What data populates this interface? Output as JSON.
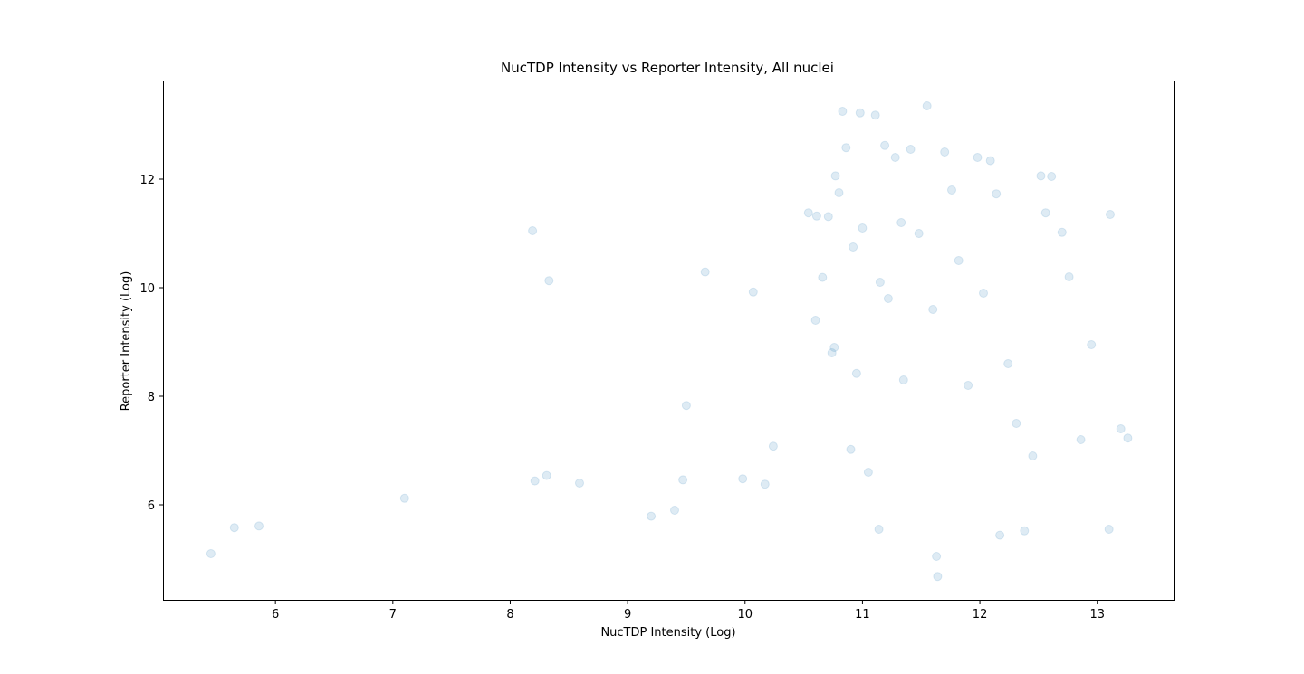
{
  "chart_data": {
    "type": "scatter",
    "title": "NucTDP Intensity vs Reporter Intensity, All nuclei",
    "xlabel": "NucTDP Intensity (Log)",
    "ylabel": "Reporter Intensity (Log)",
    "xlim": [
      5.05,
      13.65
    ],
    "ylim": [
      4.25,
      13.8
    ],
    "xticks": [
      6,
      7,
      8,
      9,
      10,
      11,
      12,
      13
    ],
    "yticks": [
      6,
      8,
      10,
      12
    ],
    "grid": false,
    "legend": "none",
    "marker_color": "#1f77b4",
    "marker_alpha": 0.15,
    "points": {
      "x": [
        5.45,
        5.65,
        5.86,
        7.1,
        8.19,
        8.21,
        8.31,
        8.33,
        8.59,
        9.2,
        9.4,
        9.47,
        9.5,
        9.66,
        9.98,
        10.07,
        10.17,
        10.24,
        10.54,
        10.61,
        10.6,
        10.66,
        10.71,
        10.74,
        10.76,
        10.77,
        10.8,
        10.83,
        10.86,
        10.9,
        10.92,
        10.95,
        10.98,
        11.0,
        11.05,
        11.11,
        11.14,
        11.15,
        11.19,
        11.22,
        11.28,
        11.33,
        11.35,
        11.41,
        11.48,
        11.55,
        11.6,
        11.63,
        11.64,
        11.7,
        11.76,
        11.82,
        11.9,
        11.98,
        12.03,
        12.09,
        12.14,
        12.17,
        12.24,
        12.31,
        12.38,
        12.45,
        12.52,
        12.56,
        12.61,
        12.7,
        12.76,
        12.86,
        12.95,
        13.1,
        13.11,
        13.2,
        13.26
      ],
      "y": [
        5.1,
        5.58,
        5.61,
        6.12,
        11.05,
        6.44,
        6.54,
        10.13,
        6.4,
        5.79,
        5.9,
        6.46,
        7.83,
        10.29,
        6.48,
        9.92,
        6.38,
        7.08,
        11.38,
        11.32,
        9.4,
        10.19,
        11.31,
        8.8,
        8.9,
        12.06,
        11.75,
        13.25,
        12.58,
        7.02,
        10.75,
        8.42,
        13.22,
        11.1,
        6.6,
        13.18,
        5.55,
        10.1,
        12.62,
        9.8,
        12.4,
        11.2,
        8.3,
        12.55,
        11.0,
        13.35,
        9.6,
        5.05,
        4.68,
        12.5,
        11.8,
        10.5,
        8.2,
        12.4,
        9.9,
        12.34,
        11.73,
        5.44,
        8.6,
        7.5,
        5.52,
        6.9,
        12.06,
        11.38,
        12.05,
        11.02,
        10.2,
        7.2,
        8.95,
        5.55,
        11.35,
        7.4,
        7.23
      ]
    }
  }
}
